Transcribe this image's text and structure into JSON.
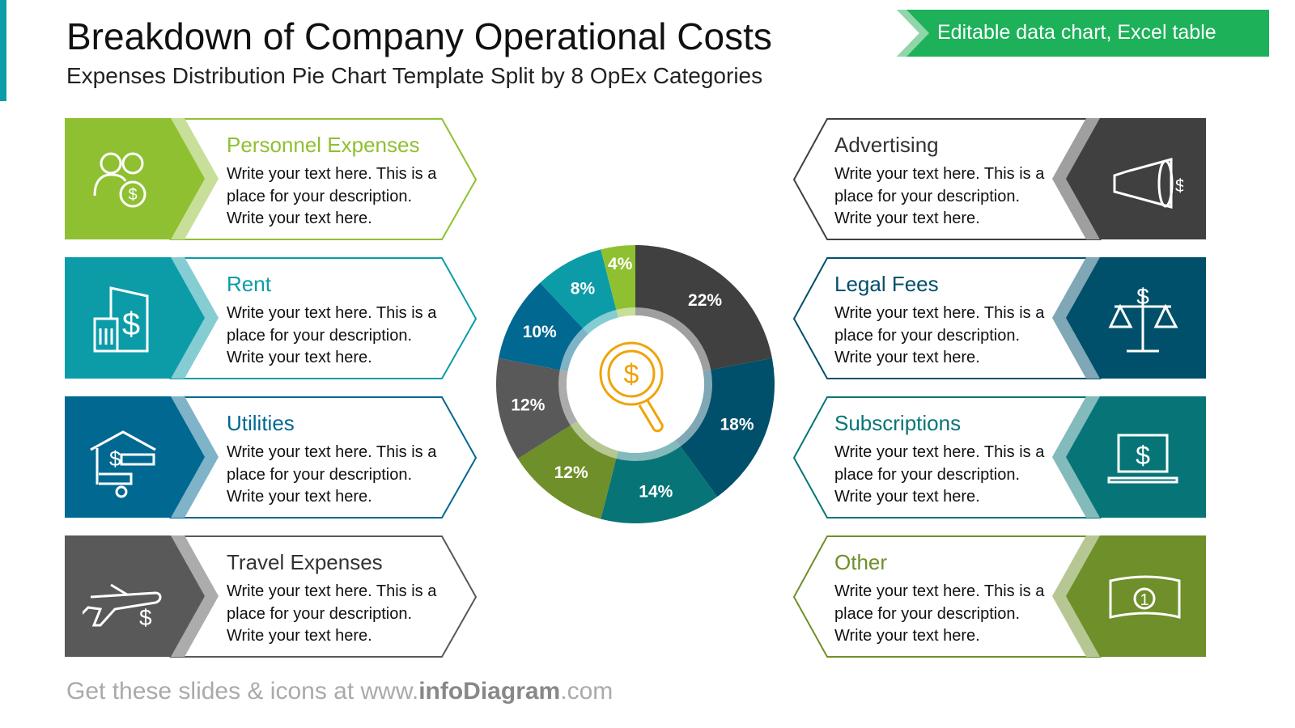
{
  "header": {
    "title": "Breakdown of Company Operational Costs",
    "subtitle": "Expenses Distribution Pie Chart Template Split by 8 OpEx Categories",
    "badge": "Editable data chart, Excel table"
  },
  "cards": [
    {
      "title": "Personnel Expenses",
      "text": "Write your text here. This is a place for your description. Write your text here.",
      "color": "#8fc031",
      "light": "#c7df98",
      "icon": "people-dollar-icon"
    },
    {
      "title": "Rent",
      "text": "Write your text here. This is a place for your description. Write your text here.",
      "color": "#0b9ca8",
      "light": "#85cdd3",
      "icon": "building-dollar-icon"
    },
    {
      "title": "Utilities",
      "text": "Write your text here. This is a place for your description. Write your text here.",
      "color": "#006891",
      "light": "#7fb3c8",
      "icon": "house-faucet-icon"
    },
    {
      "title": "Travel Expenses",
      "text": "Write your text here. This is a place for your description. Write your text here.",
      "color": "#595959",
      "light": "#acacac",
      "icon": "airplane-dollar-icon"
    },
    {
      "title": "Advertising",
      "text": "Write your text here. This is a place for your description. Write your text here.",
      "color": "#404040",
      "light": "#9f9f9f",
      "icon": "megaphone-icon"
    },
    {
      "title": "Legal Fees",
      "text": "Write your text here. This is a place for your description. Write your text here.",
      "color": "#00506b",
      "light": "#7fa7b5",
      "icon": "scales-icon"
    },
    {
      "title": "Subscriptions",
      "text": "Write your text here. This is a place for your description. Write your text here.",
      "color": "#077577",
      "light": "#83babb",
      "icon": "laptop-dollar-icon"
    },
    {
      "title": "Other",
      "text": "Write your text here. This is a place for your description. Write your text here.",
      "color": "#6e8f29",
      "light": "#b6c794",
      "icon": "banknote-icon"
    }
  ],
  "chart_data": {
    "type": "pie",
    "style": "donut",
    "categories": [
      "Advertising",
      "Legal Fees",
      "Subscriptions",
      "Other",
      "Travel Expenses",
      "Utilities",
      "Rent",
      "Personnel Expenses"
    ],
    "values": [
      22,
      18,
      14,
      12,
      12,
      10,
      8,
      4
    ],
    "labels": [
      "22%",
      "18%",
      "14%",
      "12%",
      "12%",
      "10%",
      "8%",
      "4%"
    ],
    "colors": [
      "#404040",
      "#00506b",
      "#077577",
      "#6e8f29",
      "#595959",
      "#006891",
      "#0b9ca8",
      "#8fc031"
    ],
    "center_icon": "magnifier-dollar-icon",
    "center_color": "#f0a30a"
  },
  "footer": {
    "prefix": "Get these slides & icons at www.",
    "brand": "infoDiagram",
    "suffix": ".com"
  }
}
